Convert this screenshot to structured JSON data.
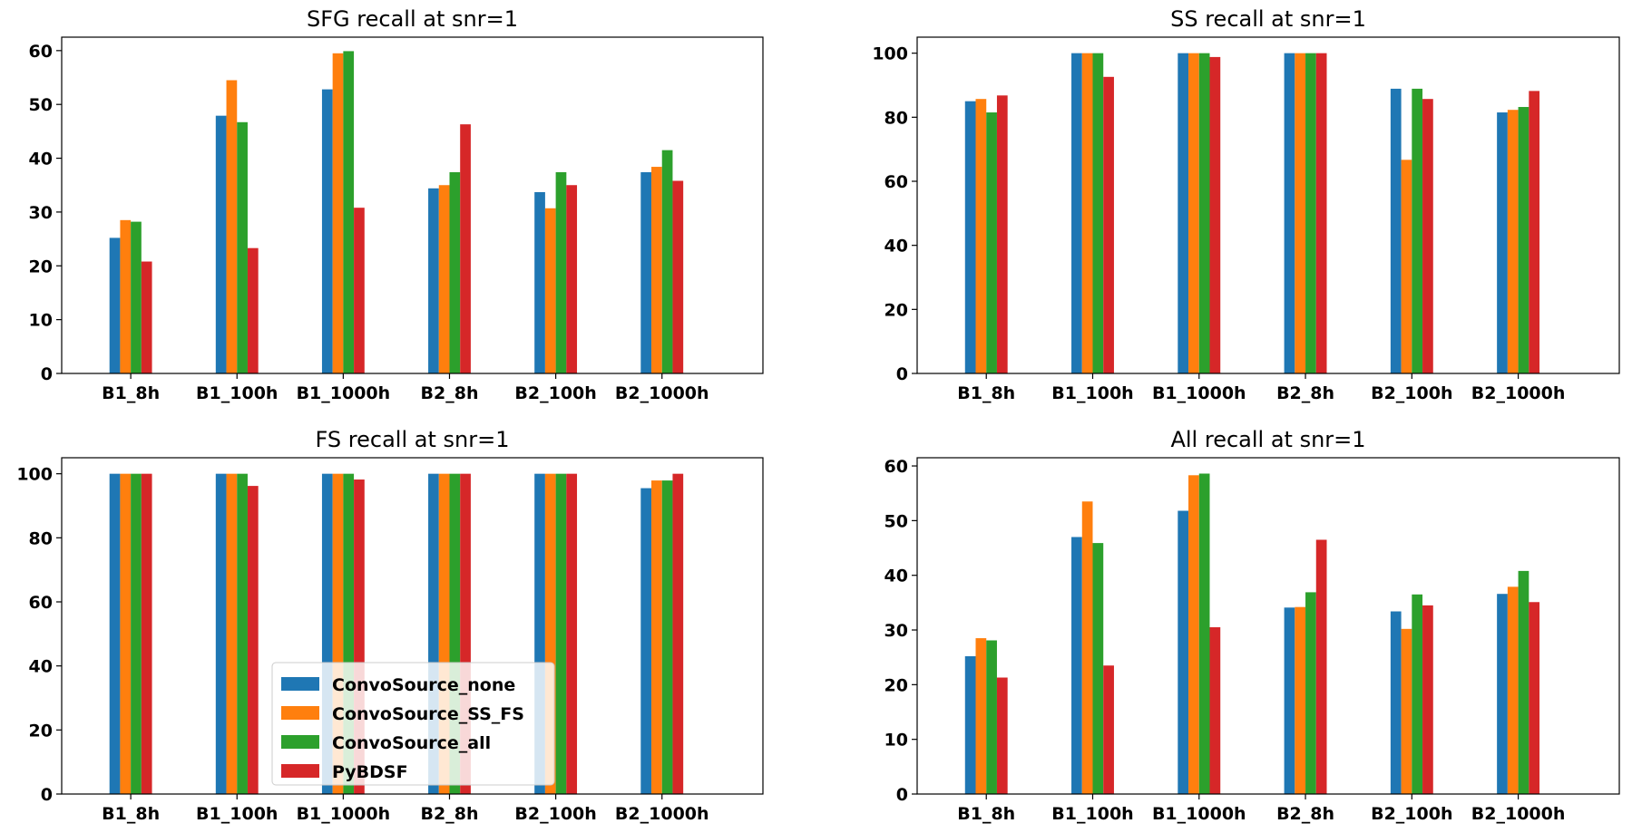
{
  "series_names": [
    "ConvoSource_none",
    "ConvoSource_SS_FS",
    "ConvoSource_all",
    "PyBDSF"
  ],
  "series_colors": [
    "#1f77b4",
    "#ff7f0e",
    "#2ca02c",
    "#d62728"
  ],
  "chart_data": [
    {
      "type": "bar",
      "title": "SFG recall at snr=1",
      "categories": [
        "B1_8h",
        "B1_100h",
        "B1_1000h",
        "B2_8h",
        "B2_100h",
        "B2_1000h"
      ],
      "ylim": [
        0,
        62.5
      ],
      "yticks": [
        0,
        10,
        20,
        30,
        40,
        50,
        60
      ],
      "xlabel": "",
      "ylabel": "",
      "series": [
        {
          "name": "ConvoSource_none",
          "values": [
            25.2,
            47.9,
            52.8,
            34.4,
            33.7,
            37.4
          ]
        },
        {
          "name": "ConvoSource_SS_FS",
          "values": [
            28.5,
            54.5,
            59.5,
            35.0,
            30.7,
            38.4
          ]
        },
        {
          "name": "ConvoSource_all",
          "values": [
            28.2,
            46.7,
            59.9,
            37.4,
            37.4,
            41.5
          ]
        },
        {
          "name": "PyBDSF",
          "values": [
            20.8,
            23.3,
            30.8,
            46.3,
            35.0,
            35.8
          ]
        }
      ]
    },
    {
      "type": "bar",
      "title": "SS recall at snr=1",
      "categories": [
        "B1_8h",
        "B1_100h",
        "B1_1000h",
        "B2_8h",
        "B2_100h",
        "B2_1000h"
      ],
      "ylim": [
        0,
        105
      ],
      "yticks": [
        0,
        20,
        40,
        60,
        80,
        100
      ],
      "xlabel": "",
      "ylabel": "",
      "series": [
        {
          "name": "ConvoSource_none",
          "values": [
            85,
            100,
            100,
            100,
            88.9,
            81.5
          ]
        },
        {
          "name": "ConvoSource_SS_FS",
          "values": [
            85.7,
            100,
            100,
            100,
            66.7,
            82.3
          ]
        },
        {
          "name": "ConvoSource_all",
          "values": [
            81.5,
            100,
            100,
            100,
            88.9,
            83.2
          ]
        },
        {
          "name": "PyBDSF",
          "values": [
            86.8,
            92.6,
            98.8,
            100,
            85.7,
            88.2
          ]
        }
      ]
    },
    {
      "type": "bar",
      "title": "FS recall at snr=1",
      "categories": [
        "B1_8h",
        "B1_100h",
        "B1_1000h",
        "B2_8h",
        "B2_100h",
        "B2_1000h"
      ],
      "ylim": [
        0,
        105
      ],
      "yticks": [
        0,
        20,
        40,
        60,
        80,
        100
      ],
      "xlabel": "",
      "ylabel": "",
      "legend": "lower center",
      "series": [
        {
          "name": "ConvoSource_none",
          "values": [
            100,
            100,
            100,
            100,
            100,
            95.5
          ]
        },
        {
          "name": "ConvoSource_SS_FS",
          "values": [
            100,
            100,
            100,
            100,
            100,
            97.9
          ]
        },
        {
          "name": "ConvoSource_all",
          "values": [
            100,
            100,
            100,
            100,
            100,
            97.9
          ]
        },
        {
          "name": "PyBDSF",
          "values": [
            100,
            96.2,
            98.2,
            100,
            100,
            100
          ]
        }
      ]
    },
    {
      "type": "bar",
      "title": "All recall at snr=1",
      "categories": [
        "B1_8h",
        "B1_100h",
        "B1_1000h",
        "B2_8h",
        "B2_100h",
        "B2_1000h"
      ],
      "ylim": [
        0,
        61.5
      ],
      "yticks": [
        0,
        10,
        20,
        30,
        40,
        50,
        60
      ],
      "xlabel": "",
      "ylabel": "",
      "series": [
        {
          "name": "ConvoSource_none",
          "values": [
            25.2,
            47.0,
            51.8,
            34.1,
            33.4,
            36.6
          ]
        },
        {
          "name": "ConvoSource_SS_FS",
          "values": [
            28.5,
            53.5,
            58.3,
            34.2,
            30.2,
            37.9
          ]
        },
        {
          "name": "ConvoSource_all",
          "values": [
            28.1,
            45.9,
            58.6,
            36.9,
            36.5,
            40.8
          ]
        },
        {
          "name": "PyBDSF",
          "values": [
            21.3,
            23.5,
            30.5,
            46.5,
            34.5,
            35.1
          ]
        }
      ]
    }
  ]
}
